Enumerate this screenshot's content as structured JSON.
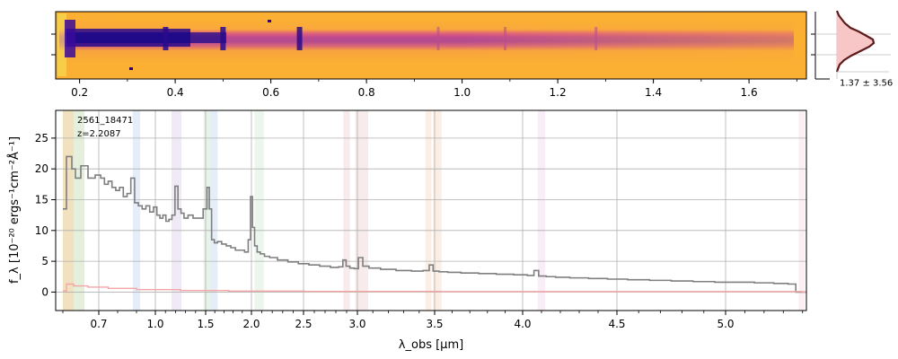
{
  "chart_data": [
    {
      "type": "heatmap",
      "panel": "2D spectrum",
      "colormap": "plasma",
      "x_ticks": [
        "0.2",
        "0.4",
        "0.6",
        "0.8",
        "1.0",
        "1.2",
        "1.4",
        "1.6"
      ],
      "x_tick_values": [
        0.2,
        0.4,
        0.6,
        0.8,
        1.0,
        1.2,
        1.4,
        1.6
      ],
      "xlim": [
        0.15,
        1.72
      ],
      "emission_features_x": [
        0.38,
        0.5,
        0.66,
        0.95,
        1.09,
        1.28
      ]
    },
    {
      "type": "histogram",
      "panel": "pixel distribution",
      "color_fill": "#f7c6c6",
      "color_line": "#5c1a1a",
      "annotation": "1.37 ± 3.56"
    },
    {
      "type": "line",
      "panel": "1D spectrum",
      "annotations": [
        "2561_18471",
        "z=2.2087"
      ],
      "xlabel": "λ_obs [μm]",
      "ylabel": "f_λ [10⁻²⁰ ergs⁻¹cm⁻²Å⁻¹]",
      "x_ticks": [
        "0.7",
        "1.0",
        "1.5",
        "2.0",
        "2.5",
        "3.0",
        "3.5",
        "4.0",
        "4.5",
        "5.0"
      ],
      "x_tick_values": [
        0.7,
        1.0,
        1.5,
        2.0,
        2.5,
        3.0,
        3.5,
        4.0,
        4.5,
        5.0
      ],
      "y_ticks": [
        "0",
        "5",
        "10",
        "15",
        "20",
        "25"
      ],
      "y_tick_values": [
        0,
        5,
        10,
        15,
        20,
        25
      ],
      "ylim": [
        -3,
        29.5
      ],
      "xlim": [
        0.58,
        5.42
      ],
      "grid": true,
      "series": [
        {
          "color": "#7f7f7f",
          "x": [
            0.6,
            0.62,
            0.63,
            0.64,
            0.66,
            0.68,
            0.7,
            0.72,
            0.74,
            0.76,
            0.78,
            0.8,
            0.82,
            0.84,
            0.86,
            0.88,
            0.9,
            0.92,
            0.94,
            0.96,
            0.98,
            1.0,
            1.03,
            1.06,
            1.09,
            1.12,
            1.15,
            1.18,
            1.21,
            1.24,
            1.27,
            1.3,
            1.35,
            1.4,
            1.45,
            1.5,
            1.53,
            1.55,
            1.58,
            1.61,
            1.65,
            1.7,
            1.75,
            1.8,
            1.85,
            1.9,
            1.95,
            1.98,
            2.0,
            2.02,
            2.04,
            2.07,
            2.1,
            2.15,
            2.2,
            2.3,
            2.4,
            2.5,
            2.6,
            2.7,
            2.8,
            2.85,
            2.88,
            2.91,
            2.95,
            2.99,
            3.02,
            3.05,
            3.1,
            3.2,
            3.3,
            3.4,
            3.45,
            3.48,
            3.5,
            3.55,
            3.6,
            3.7,
            3.8,
            3.9,
            4.0,
            4.05,
            4.07,
            4.1,
            4.15,
            4.2,
            4.3,
            4.4,
            4.5,
            4.6,
            4.7,
            4.8,
            4.9,
            5.0,
            5.1,
            5.2,
            5.3,
            5.35,
            5.38,
            5.42
          ],
          "y": [
            13.5,
            22,
            20,
            18.5,
            20.5,
            18.5,
            19,
            18.5,
            17.5,
            18,
            17,
            16.5,
            17,
            15.5,
            16,
            18.5,
            14.5,
            14,
            13.5,
            14,
            13,
            13.8,
            12.5,
            12,
            12.5,
            11.5,
            11.8,
            12.5,
            17.2,
            13.5,
            12.8,
            12,
            12.5,
            12,
            12,
            13.5,
            17,
            13.5,
            8.5,
            8,
            8.2,
            7.8,
            7.5,
            7.2,
            6.8,
            6.8,
            6.5,
            8.5,
            15.5,
            10.5,
            7.5,
            6.5,
            6.2,
            5.8,
            5.6,
            5.2,
            4.9,
            4.6,
            4.4,
            4.2,
            4.0,
            4.1,
            5.2,
            4.2,
            3.9,
            3.8,
            5.6,
            4.2,
            3.9,
            3.7,
            3.5,
            3.4,
            3.5,
            4.4,
            3.4,
            3.3,
            3.2,
            3.1,
            3.0,
            2.9,
            2.8,
            2.7,
            3.5,
            2.6,
            2.5,
            2.4,
            2.3,
            2.2,
            2.1,
            2.0,
            1.9,
            1.8,
            1.7,
            1.6,
            1.6,
            1.5,
            1.4,
            1.3,
            0.0,
            0.0
          ]
        },
        {
          "color": "#f4a6a6",
          "x": [
            0.6,
            0.62,
            0.64,
            0.7,
            0.8,
            1.0,
            1.5,
            2.0,
            3.0,
            4.0,
            5.0,
            5.38,
            5.42
          ],
          "y": [
            0.2,
            1.3,
            1.0,
            0.8,
            0.6,
            0.4,
            0.25,
            0.15,
            0.1,
            0.08,
            0.08,
            0.08,
            0.0
          ]
        }
      ],
      "shaded_bands": [
        {
          "x0": 0.6,
          "x1": 0.63,
          "color": "#e8c98a"
        },
        {
          "x0": 0.63,
          "x1": 0.66,
          "color": "#cfe3c0"
        },
        {
          "x0": 0.88,
          "x1": 0.92,
          "color": "#cfe0f2"
        },
        {
          "x0": 1.16,
          "x1": 1.26,
          "color": "#e3d9ee"
        },
        {
          "x0": 1.48,
          "x1": 1.55,
          "color": "#d6ead6"
        },
        {
          "x0": 1.55,
          "x1": 1.63,
          "color": "#cfe0f2"
        },
        {
          "x0": 2.03,
          "x1": 2.12,
          "color": "#dcefdc"
        },
        {
          "x0": 2.87,
          "x1": 2.93,
          "color": "#f2dada"
        },
        {
          "x0": 2.98,
          "x1": 3.07,
          "color": "#f2dada"
        },
        {
          "x0": 3.44,
          "x1": 3.48,
          "color": "#f7e1cf"
        },
        {
          "x0": 3.49,
          "x1": 3.54,
          "color": "#f7e1cf"
        },
        {
          "x0": 4.08,
          "x1": 4.12,
          "color": "#f4dff0"
        },
        {
          "x0": 5.38,
          "x1": 5.41,
          "color": "#f7e1e6"
        }
      ]
    }
  ]
}
